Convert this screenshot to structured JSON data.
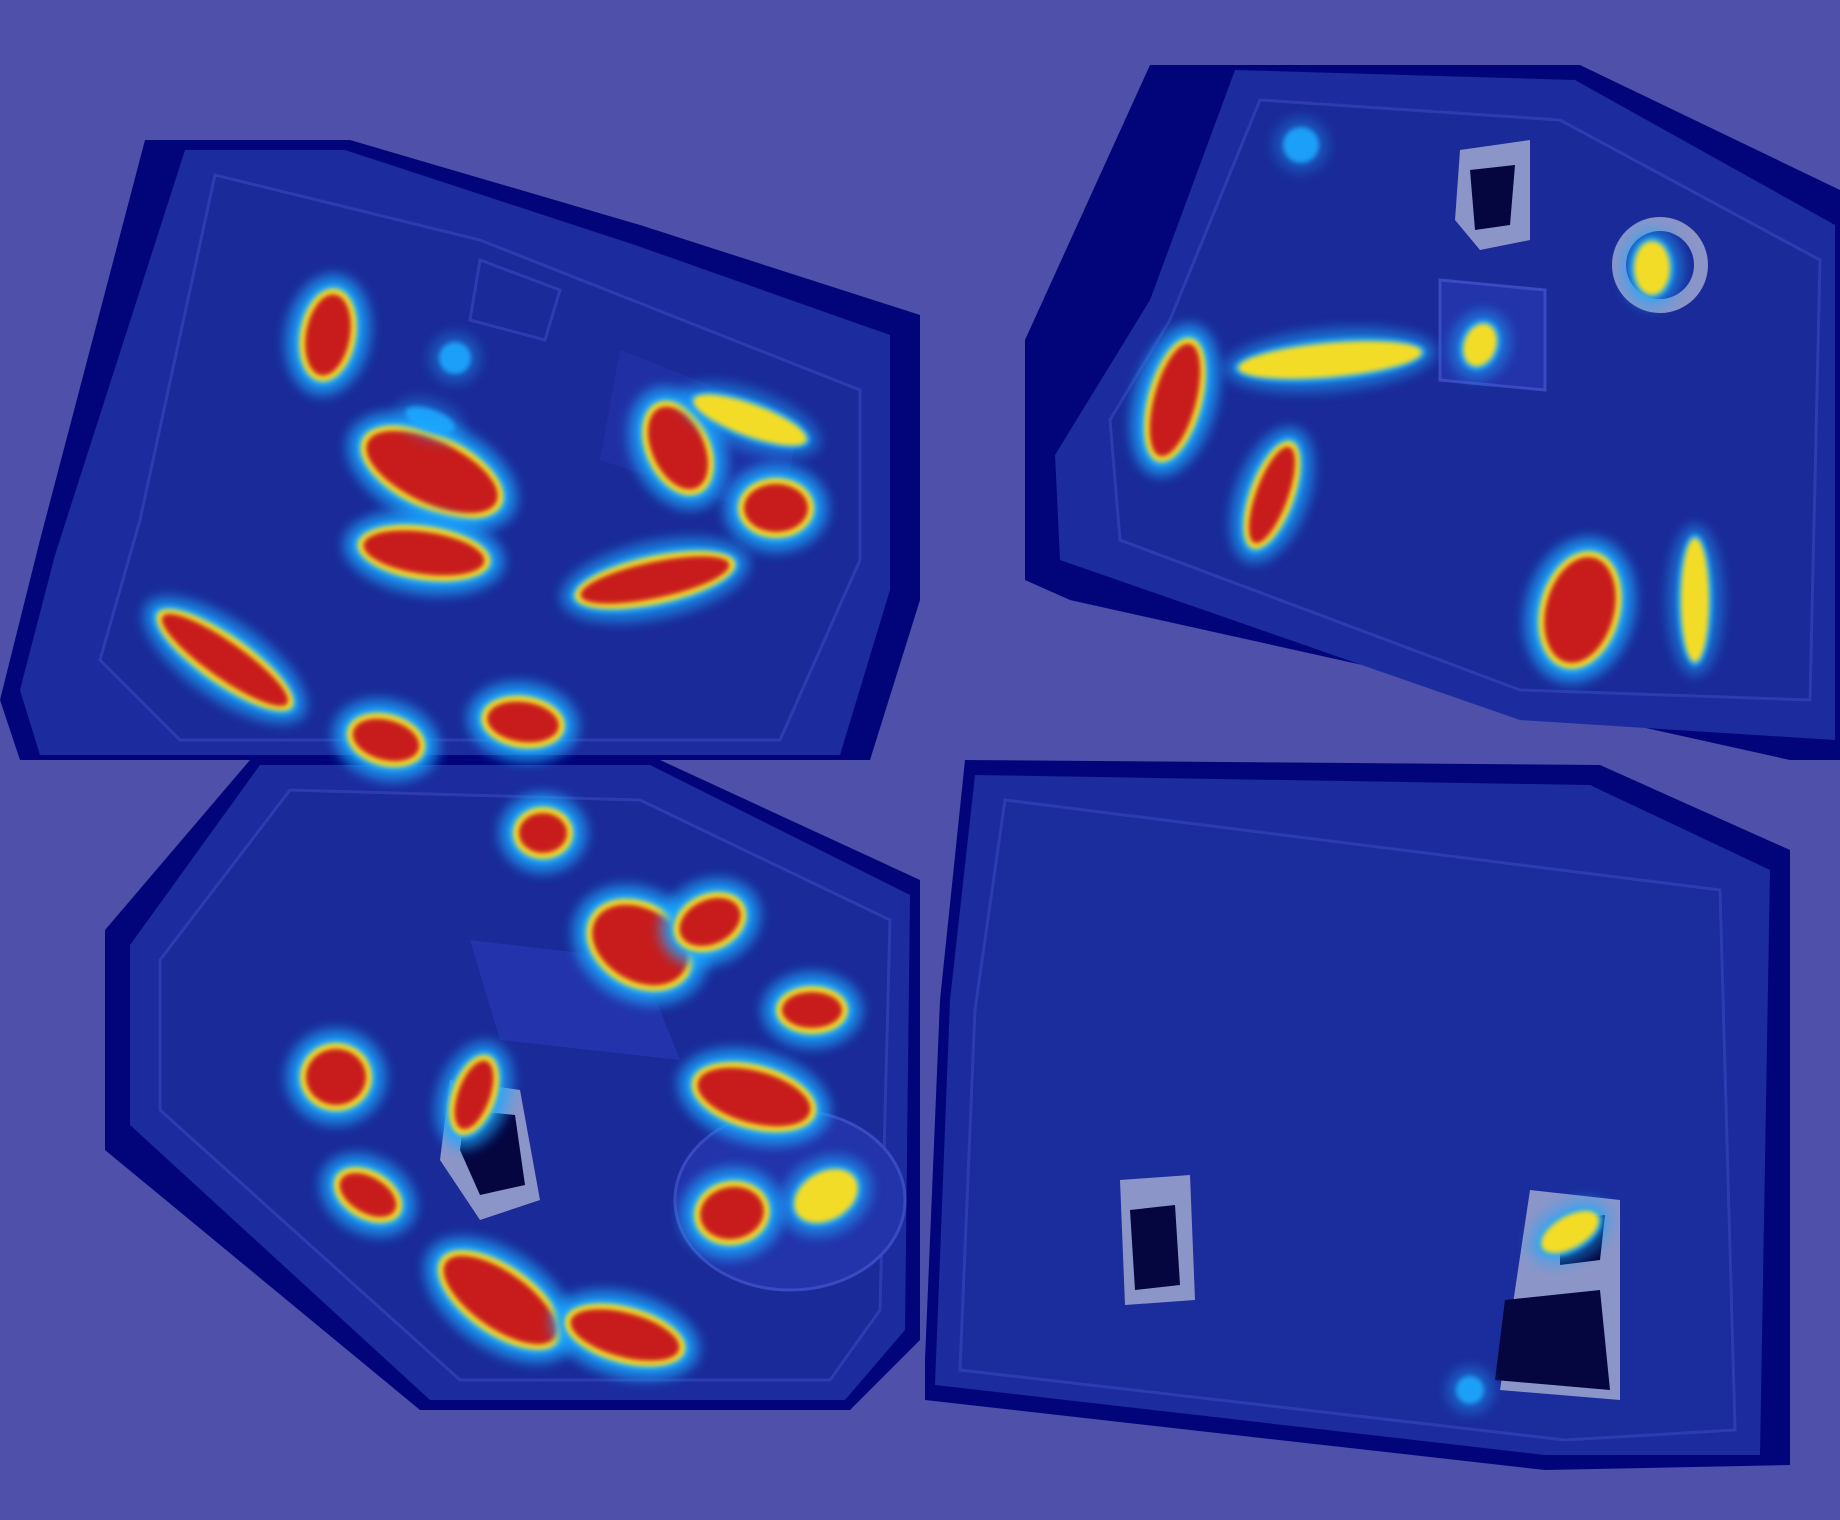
{
  "image": {
    "description_free": true,
    "colors": {
      "background": "#4e50aa",
      "floor_dark": "#02047a",
      "floor_mid": "#1a2a9e",
      "heat_low": "#1fa8ff",
      "heat_mid": "#ffe01a",
      "heat_high": "#c81e1e"
    },
    "panels": [
      {
        "name": "scan-top-left",
        "hotspot_count": 12
      },
      {
        "name": "scan-top-right",
        "hotspot_count": 8
      },
      {
        "name": "scan-bottom-left",
        "hotspot_count": 12
      },
      {
        "name": "scan-bottom-right",
        "hotspot_count": 2
      }
    ]
  }
}
